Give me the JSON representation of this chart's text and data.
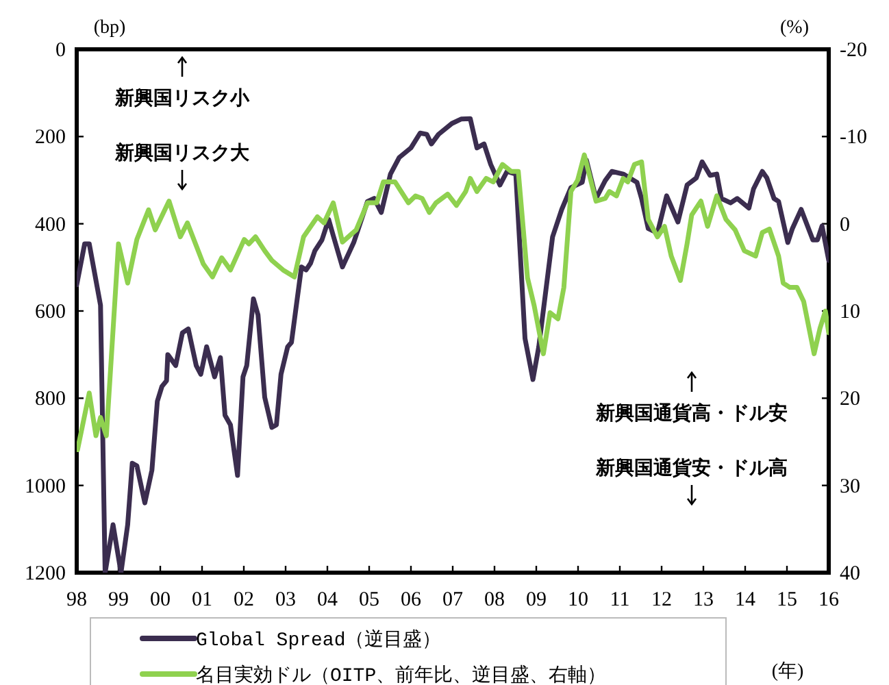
{
  "chart_data": {
    "type": "line",
    "xlabel": "(年)",
    "ylabel": "(bp)",
    "y2label": "(%)",
    "legend": "bottom",
    "xlim": [
      1998,
      2016
    ],
    "xticks": [
      {
        "value": 1998,
        "label": "98"
      },
      {
        "value": 1999,
        "label": "99"
      },
      {
        "value": 2000,
        "label": "00"
      },
      {
        "value": 2001,
        "label": "01"
      },
      {
        "value": 2002,
        "label": "02"
      },
      {
        "value": 2003,
        "label": "03"
      },
      {
        "value": 2004,
        "label": "04"
      },
      {
        "value": 2005,
        "label": "05"
      },
      {
        "value": 2006,
        "label": "06"
      },
      {
        "value": 2007,
        "label": "07"
      },
      {
        "value": 2008,
        "label": "08"
      },
      {
        "value": 2009,
        "label": "09"
      },
      {
        "value": 2010,
        "label": "10"
      },
      {
        "value": 2011,
        "label": "11"
      },
      {
        "value": 2012,
        "label": "12"
      },
      {
        "value": 2013,
        "label": "13"
      },
      {
        "value": 2014,
        "label": "14"
      },
      {
        "value": 2015,
        "label": "15"
      },
      {
        "value": 2016,
        "label": "16"
      }
    ],
    "ylim": [
      1200,
      0
    ],
    "yticks": [
      0,
      200,
      400,
      600,
      800,
      1000,
      1200
    ],
    "y2lim": [
      40,
      -20
    ],
    "y2ticks": [
      -20,
      -10,
      0,
      10,
      20,
      30,
      40
    ],
    "annotations": [
      "新興国リスク小",
      "新興国リスク大",
      "新興国通貨高・ドル安",
      "新興国通貨安・ドル高"
    ],
    "series": [
      {
        "name": "Global Spread（逆目盛）",
        "color": "#3b2d4f",
        "x": [
          1998.0,
          1998.19,
          1998.3,
          1998.57,
          1998.68,
          1998.87,
          1999.06,
          1999.22,
          1999.33,
          1999.44,
          1999.63,
          1999.8,
          1999.93,
          2000.04,
          2000.15,
          2000.18,
          2000.37,
          2000.53,
          2000.67,
          2000.86,
          2000.97,
          2001.11,
          2001.3,
          2001.44,
          2001.55,
          2001.68,
          2001.85,
          2001.98,
          2002.07,
          2002.23,
          2002.34,
          2002.5,
          2002.67,
          2002.78,
          2002.89,
          2003.05,
          2003.14,
          2003.27,
          2003.38,
          2003.49,
          2003.6,
          2003.7,
          2003.87,
          2004.03,
          2004.14,
          2004.36,
          2004.63,
          2004.96,
          2005.12,
          2005.29,
          2005.51,
          2005.72,
          2006.0,
          2006.22,
          2006.38,
          2006.49,
          2006.66,
          2006.98,
          2007.2,
          2007.42,
          2007.58,
          2007.75,
          2007.91,
          2008.13,
          2008.3,
          2008.51,
          2008.73,
          2008.92,
          2009.06,
          2009.39,
          2009.61,
          2009.83,
          2010.1,
          2010.2,
          2010.43,
          2010.65,
          2010.81,
          2011.08,
          2011.41,
          2011.52,
          2011.68,
          2011.9,
          2012.12,
          2012.39,
          2012.61,
          2012.83,
          2012.97,
          2013.16,
          2013.32,
          2013.43,
          2013.65,
          2013.81,
          2014.09,
          2014.2,
          2014.41,
          2014.52,
          2014.69,
          2014.8,
          2015.02,
          2015.13,
          2015.34,
          2015.62,
          2015.73,
          2015.84,
          2016.0
        ],
        "values": [
          540,
          446,
          446,
          587,
          1200,
          1090,
          1200,
          1090,
          949,
          955,
          1040,
          965,
          807,
          773,
          760,
          700,
          725,
          650,
          641,
          725,
          745,
          682,
          751,
          707,
          839,
          861,
          977,
          751,
          725,
          572,
          609,
          798,
          867,
          861,
          745,
          682,
          672,
          578,
          499,
          506,
          490,
          462,
          437,
          390,
          427,
          499,
          443,
          349,
          342,
          374,
          286,
          248,
          226,
          192,
          195,
          217,
          195,
          170,
          160,
          159,
          226,
          217,
          264,
          311,
          280,
          286,
          663,
          757,
          682,
          430,
          367,
          317,
          305,
          254,
          342,
          301,
          280,
          286,
          305,
          342,
          411,
          421,
          336,
          396,
          311,
          295,
          258,
          289,
          286,
          342,
          352,
          342,
          364,
          320,
          280,
          295,
          342,
          349,
          443,
          411,
          367,
          437,
          437,
          405,
          484
        ]
      },
      {
        "name": "名目実効ドル（OITP、前年比、逆目盛、右軸）",
        "color": "#8fd14f",
        "axis": "y2",
        "x": [
          1998.02,
          1998.3,
          1998.46,
          1998.57,
          1998.71,
          1999.0,
          1999.22,
          1999.44,
          1999.72,
          1999.88,
          2000.21,
          2000.48,
          2000.65,
          2001.03,
          2001.25,
          2001.47,
          2001.68,
          2002.01,
          2002.12,
          2002.28,
          2002.5,
          2002.67,
          2002.94,
          2003.21,
          2003.43,
          2003.76,
          2003.92,
          2004.14,
          2004.36,
          2004.69,
          2004.96,
          2005.18,
          2005.34,
          2005.62,
          2005.94,
          2006.11,
          2006.27,
          2006.44,
          2006.6,
          2006.88,
          2007.09,
          2007.31,
          2007.42,
          2007.58,
          2007.8,
          2007.97,
          2008.19,
          2008.4,
          2008.57,
          2008.79,
          2008.95,
          2009.17,
          2009.33,
          2009.52,
          2009.66,
          2009.83,
          2009.99,
          2010.15,
          2010.43,
          2010.65,
          2010.75,
          2010.92,
          2011.08,
          2011.19,
          2011.35,
          2011.52,
          2011.68,
          2011.9,
          2012.07,
          2012.23,
          2012.45,
          2012.61,
          2012.72,
          2012.94,
          2013.1,
          2013.32,
          2013.54,
          2013.76,
          2013.98,
          2014.25,
          2014.41,
          2014.58,
          2014.8,
          2014.91,
          2015.07,
          2015.24,
          2015.4,
          2015.65,
          2015.79,
          2015.92,
          2016.0
        ],
        "values": [
          25.9,
          19.4,
          24.3,
          22.2,
          24.3,
          2.3,
          6.8,
          1.8,
          -1.6,
          0.7,
          -2.6,
          1.5,
          -0.1,
          4.6,
          6.1,
          3.9,
          5.3,
          1.8,
          2.3,
          1.5,
          3.1,
          4.2,
          5.3,
          6.1,
          1.5,
          -0.8,
          -0.1,
          -2.4,
          2.1,
          0.7,
          -2.4,
          -2.4,
          -4.8,
          -4.8,
          -2.4,
          -3.2,
          -2.9,
          -1.3,
          -2.4,
          -3.4,
          -2.1,
          -3.7,
          -5.2,
          -3.7,
          -5.2,
          -4.8,
          -6.8,
          -6.0,
          -6.0,
          6.2,
          9.4,
          14.9,
          10.2,
          10.9,
          7.3,
          -3.7,
          -5.0,
          -7.9,
          -2.6,
          -2.9,
          -3.7,
          -3.2,
          -5.2,
          -4.8,
          -6.8,
          -7.1,
          -0.5,
          1.5,
          0.3,
          3.7,
          6.5,
          2.3,
          -1.0,
          -2.6,
          0.3,
          -3.2,
          -0.5,
          0.7,
          3.1,
          3.7,
          1.0,
          0.6,
          3.7,
          6.8,
          7.3,
          7.3,
          8.9,
          14.9,
          12.0,
          10.0,
          12.5
        ]
      }
    ]
  }
}
